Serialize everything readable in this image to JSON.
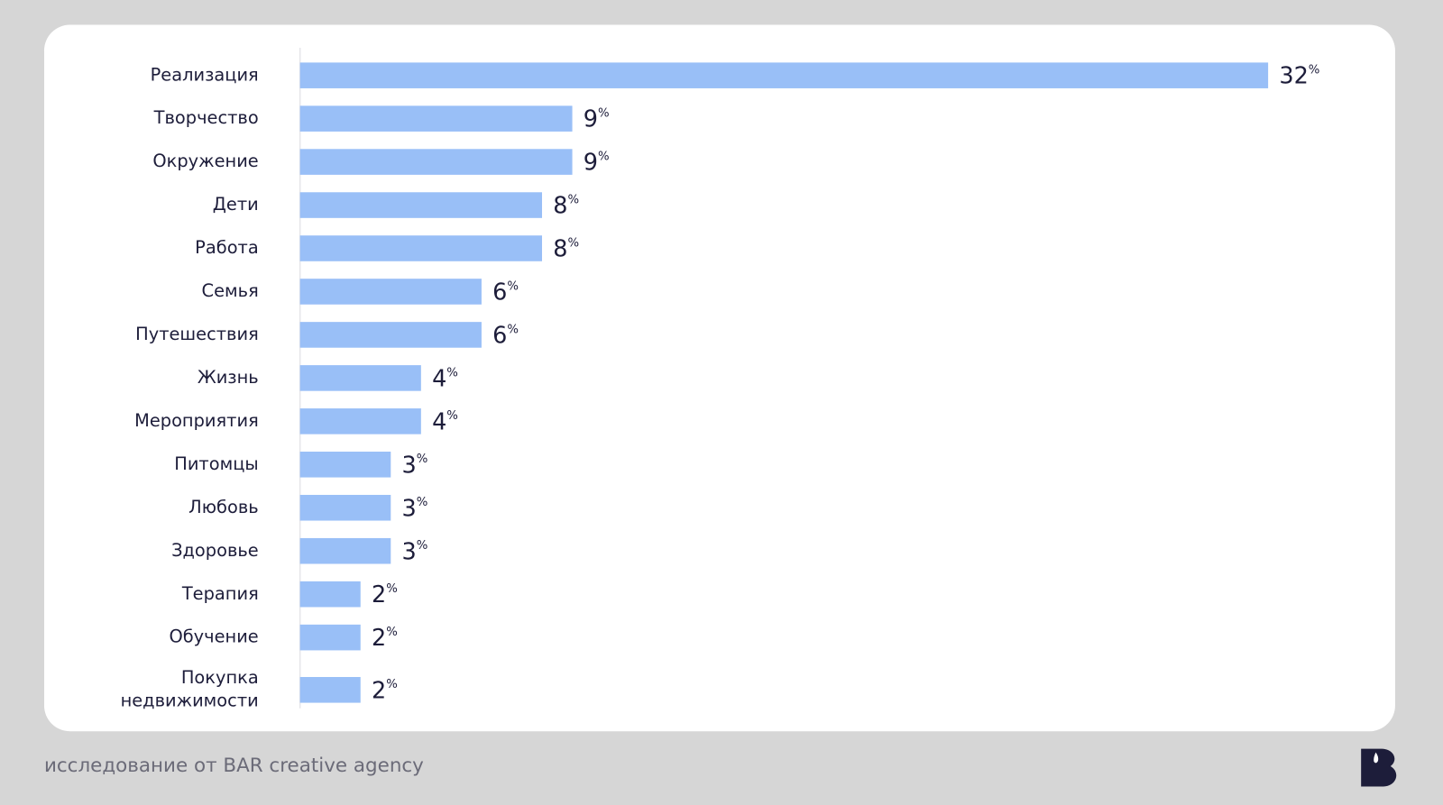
{
  "chart_data": {
    "type": "bar",
    "orientation": "horizontal",
    "categories": [
      "Реализация",
      "Творчество",
      "Окружение",
      "Дети",
      "Работа",
      "Семья",
      "Путешествия",
      "Жизнь",
      "Мероприятия",
      "Питомцы",
      "Любовь",
      "Здоровье",
      "Терапия",
      "Обучение",
      "Покупка недвижимости"
    ],
    "values": [
      32,
      9,
      9,
      8,
      8,
      6,
      6,
      4,
      4,
      3,
      3,
      3,
      2,
      2,
      2
    ],
    "unit": "%",
    "color": "#99bff7",
    "xlim": [
      0,
      32
    ],
    "source": "исследование от BAR creative agency"
  }
}
